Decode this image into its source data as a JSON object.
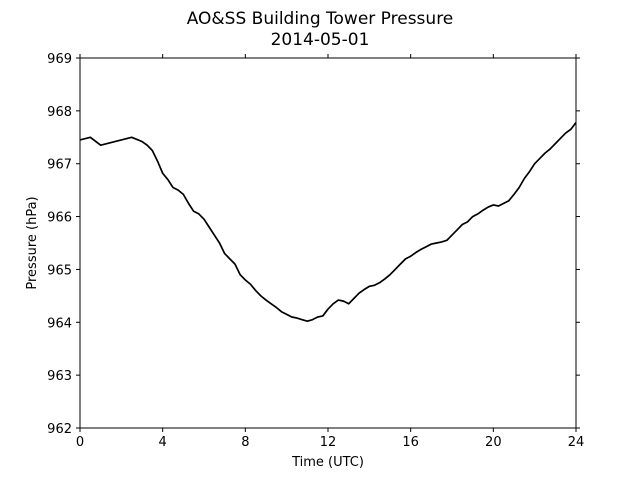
{
  "chart_data": {
    "type": "line",
    "title": "AO&SS Building Tower Pressure",
    "subtitle": "2014-05-01",
    "xlabel": "Time (UTC)",
    "ylabel": "Pressure (hPa)",
    "xlim": [
      0,
      24
    ],
    "ylim": [
      962,
      969
    ],
    "xticks": [
      0,
      4,
      8,
      12,
      16,
      20,
      24
    ],
    "yticks": [
      962,
      963,
      964,
      965,
      966,
      967,
      968,
      969
    ],
    "grid": false,
    "line_color": "#000000",
    "series": [
      {
        "x": [
          0,
          0.5,
          1,
          1.5,
          2,
          2.5,
          3,
          3.25,
          3.5,
          3.75,
          4,
          4.25,
          4.5,
          4.75,
          5,
          5.25,
          5.5,
          5.75,
          6,
          6.25,
          6.5,
          6.75,
          7,
          7.25,
          7.5,
          7.75,
          8,
          8.25,
          8.5,
          8.75,
          9,
          9.25,
          9.5,
          9.75,
          10,
          10.25,
          10.5,
          10.75,
          11,
          11.25,
          11.5,
          11.75,
          12,
          12.25,
          12.5,
          12.75,
          13,
          13.25,
          13.5,
          13.75,
          14,
          14.25,
          14.5,
          14.75,
          15,
          15.25,
          15.5,
          15.75,
          16,
          16.25,
          16.5,
          16.75,
          17,
          17.25,
          17.5,
          17.75,
          18,
          18.25,
          18.5,
          18.75,
          19,
          19.25,
          19.5,
          19.75,
          20,
          20.25,
          20.5,
          20.75,
          21,
          21.25,
          21.5,
          21.75,
          22,
          22.25,
          22.5,
          22.75,
          23,
          23.25,
          23.5,
          23.75,
          24
        ],
        "y": [
          967.45,
          967.5,
          967.35,
          967.4,
          967.45,
          967.5,
          967.42,
          967.35,
          967.25,
          967.05,
          966.82,
          966.7,
          966.55,
          966.5,
          966.42,
          966.25,
          966.1,
          966.05,
          965.95,
          965.8,
          965.65,
          965.5,
          965.3,
          965.2,
          965.1,
          964.9,
          964.8,
          964.72,
          964.6,
          964.5,
          964.42,
          964.35,
          964.28,
          964.2,
          964.15,
          964.1,
          964.08,
          964.05,
          964.02,
          964.05,
          964.1,
          964.12,
          964.25,
          964.35,
          964.42,
          964.4,
          964.35,
          964.45,
          964.55,
          964.62,
          964.68,
          964.7,
          964.75,
          964.82,
          964.9,
          965.0,
          965.1,
          965.2,
          965.25,
          965.32,
          965.38,
          965.43,
          965.48,
          965.5,
          965.52,
          965.55,
          965.65,
          965.75,
          965.85,
          965.9,
          966.0,
          966.05,
          966.12,
          966.18,
          966.22,
          966.2,
          966.25,
          966.3,
          966.42,
          966.55,
          966.72,
          966.85,
          967.0,
          967.1,
          967.2,
          967.28,
          967.38,
          967.48,
          967.58,
          967.65,
          967.78
        ]
      }
    ]
  }
}
